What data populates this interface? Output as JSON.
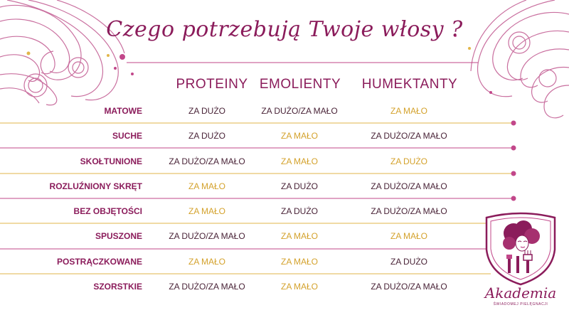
{
  "title": "Czego potrzebują Twoje włosy ?",
  "columns": [
    "PROTEINY",
    "EMOLIENTY",
    "HUMEKTANTY"
  ],
  "rows": [
    {
      "label": "MATOWE",
      "cells": [
        "ZA DUŻO",
        "ZA DUŻO/ZA MAŁO",
        "ZA MAŁO"
      ]
    },
    {
      "label": "SUCHE",
      "cells": [
        "ZA DUŻO",
        "ZA MAŁO",
        "ZA DUŻO/ZA MAŁO"
      ]
    },
    {
      "label": "SKOŁTUNIONE",
      "cells": [
        "ZA DUŻO/ZA MAŁO",
        "ZA MAŁO",
        "ZA DUŻO"
      ]
    },
    {
      "label": "ROZLUŹNIONY SKRĘT",
      "cells": [
        "ZA MAŁO",
        "ZA DUŻO",
        "ZA DUŻO/ZA MAŁO"
      ]
    },
    {
      "label": "BEZ OBJĘTOŚCI",
      "cells": [
        "ZA MAŁO",
        "ZA DUŻO",
        "ZA DUŻO/ZA MAŁO"
      ]
    },
    {
      "label": "SPUSZONE",
      "cells": [
        "ZA DUŻO/ZA MAŁO",
        "ZA MAŁO",
        "ZA MAŁO"
      ]
    },
    {
      "label": "POSTRĄCZKOWANE",
      "cells": [
        "ZA MAŁO",
        "ZA MAŁO",
        "ZA DUŻO"
      ]
    },
    {
      "label": "SZORSTKIE",
      "cells": [
        "ZA DUŻO/ZA MAŁO",
        "ZA MAŁO",
        "ZA DUŻO/ZA MAŁO"
      ]
    }
  ],
  "logo": {
    "name": "Akademia",
    "subtitle": "ŚWIADOMEJ PIELĘGNACJI"
  },
  "colors": {
    "accent": "#8b1c5b",
    "gold": "#d4a22c",
    "text": "#4a2438",
    "line_pink": "#c2478a",
    "line_gold": "#e2b64a"
  }
}
